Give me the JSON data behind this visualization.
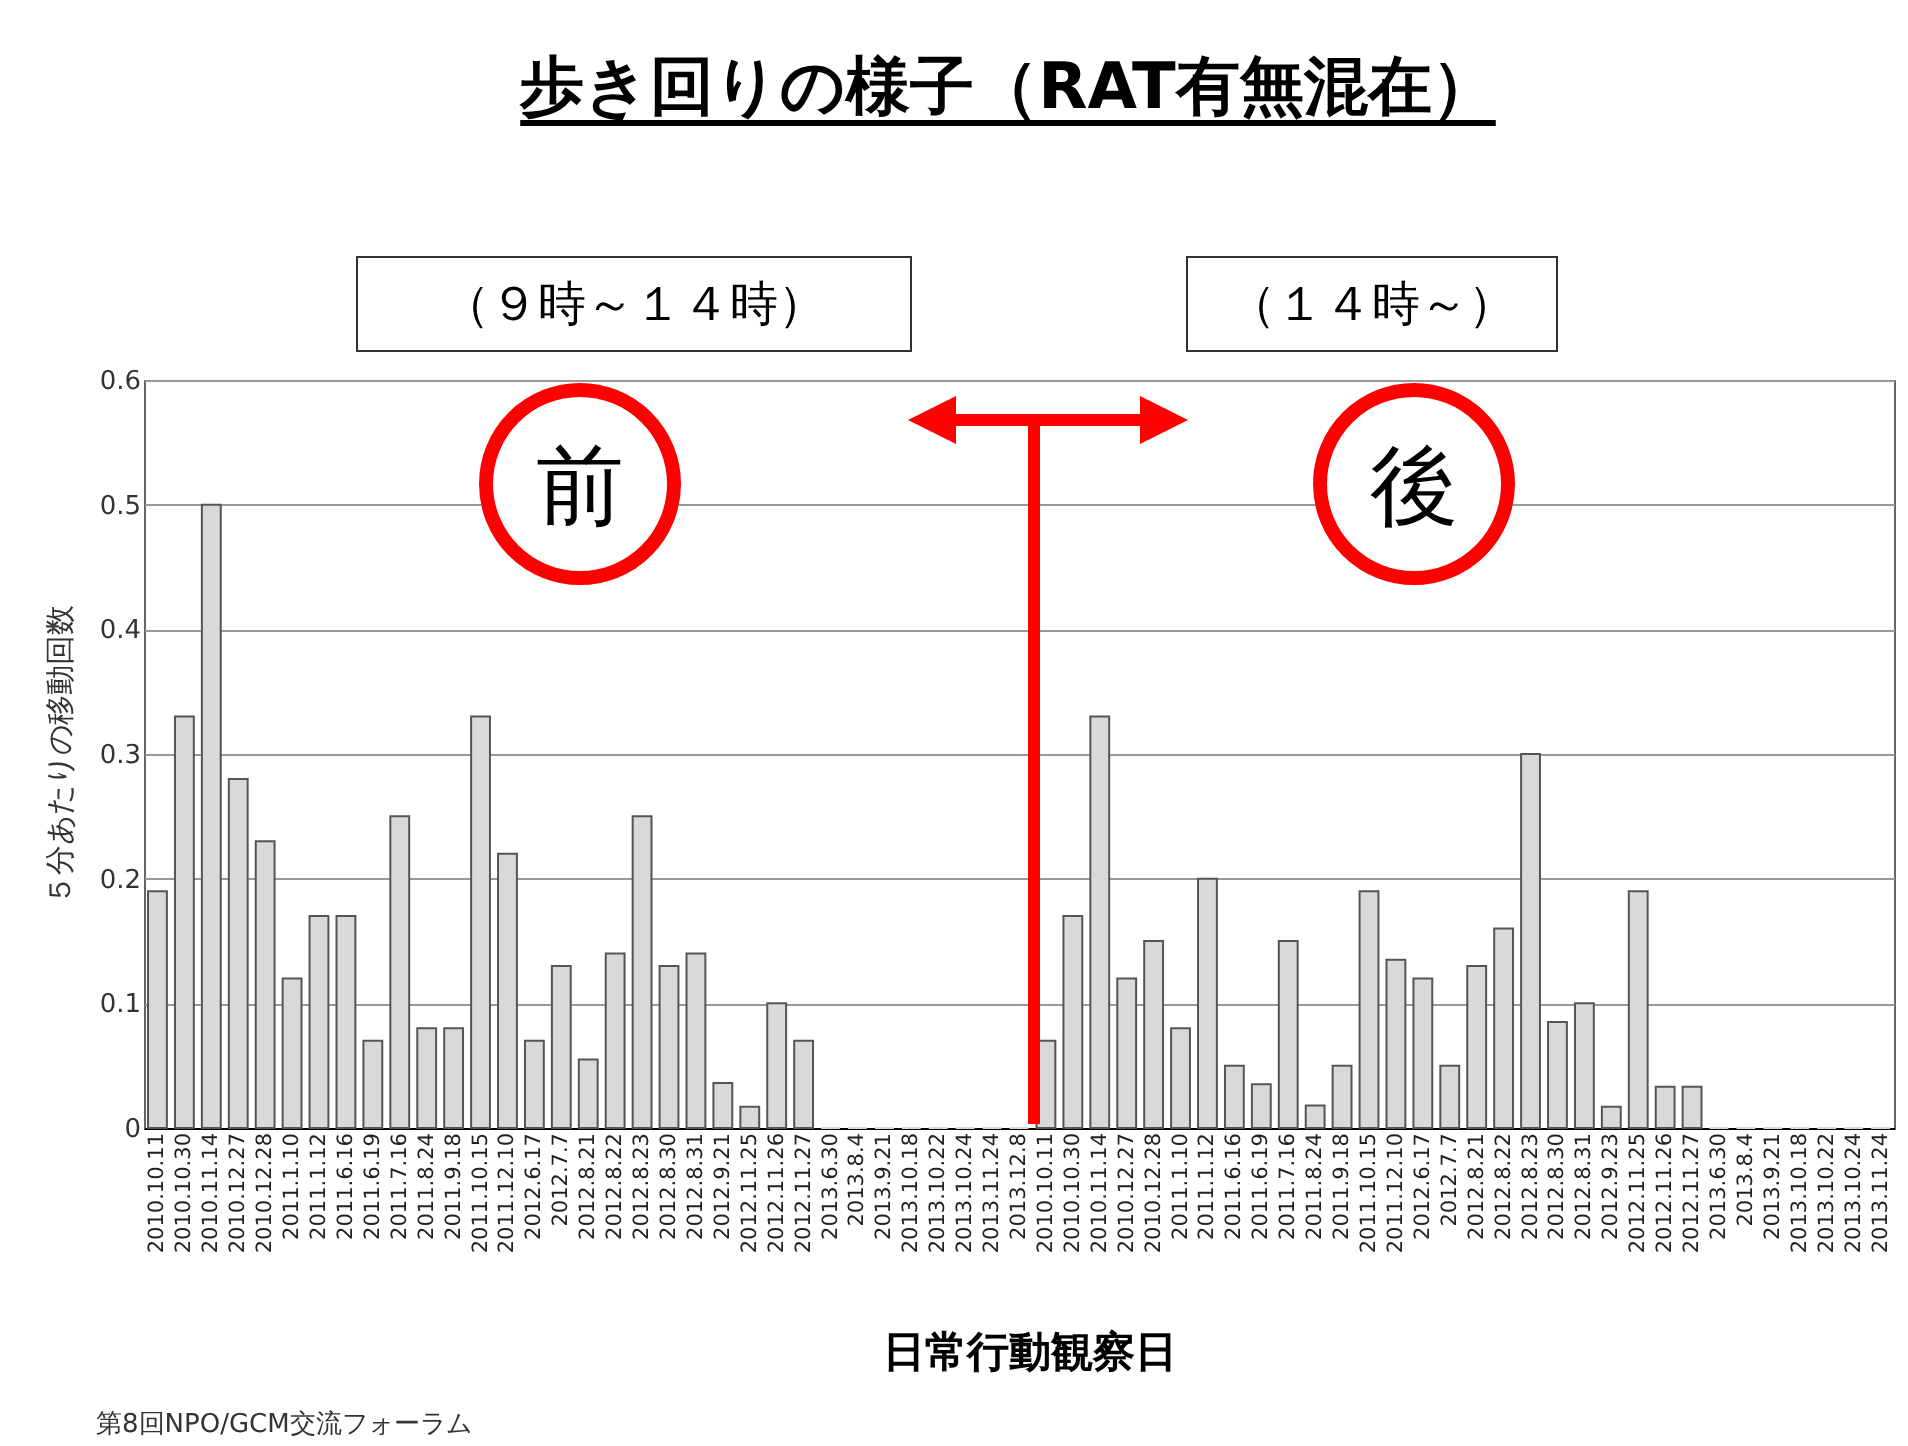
{
  "chart_data": {
    "type": "bar",
    "title": "歩き回りの様子（RAT有無混在）",
    "xlabel": "日常行動観察日",
    "ylabel": "５分あたりの移動回数",
    "annotations": [
      "（９時～１４時）",
      "（１４時～）",
      "前",
      "後",
      "第8回NPO/GCM交流フォーラム"
    ],
    "categories": [
      "2010.10.11",
      "2010.10.30",
      "2010.11.14",
      "2010.12.27",
      "2010.12.28",
      "2011.1.10",
      "2011.1.12",
      "2011.6.16",
      "2011.6.19",
      "2011.7.16",
      "2011.8.24",
      "2011.9.18",
      "2011.10.15",
      "2011.12.10",
      "2012.6.17",
      "2012.7.7",
      "2012.8.21",
      "2012.8.22",
      "2012.8.23",
      "2012.8.30",
      "2012.8.31",
      "2012.9.21",
      "2012.11.25",
      "2012.11.26",
      "2012.11.27",
      "2013.6.30",
      "2013.8.4",
      "2013.9.21",
      "2013.10.18",
      "2013.10.22",
      "2013.10.24",
      "2013.11.24",
      "2013.12.8",
      "2010.10.11",
      "2010.10.30",
      "2010.11.14",
      "2010.12.27",
      "2010.12.28",
      "2011.1.10",
      "2011.1.12",
      "2011.6.16",
      "2011.6.19",
      "2011.7.16",
      "2011.8.24",
      "2011.9.18",
      "2011.10.15",
      "2011.12.10",
      "2012.6.17",
      "2012.7.7",
      "2012.8.21",
      "2012.8.22",
      "2012.8.23",
      "2012.8.30",
      "2012.8.31",
      "2012.9.23",
      "2012.11.25",
      "2012.11.26",
      "2012.11.27",
      "2013.6.30",
      "2013.8.4",
      "2013.9.21",
      "2013.10.18",
      "2013.10.22",
      "2013.10.24",
      "2013.11.24"
    ],
    "values": [
      0.19,
      0.33,
      0.5,
      0.28,
      0.23,
      0.12,
      0.17,
      0.17,
      0.07,
      0.25,
      0.08,
      0.08,
      0.33,
      0.22,
      0.07,
      0.13,
      0.055,
      0.14,
      0.25,
      0.13,
      0.14,
      0.036,
      0.017,
      0.1,
      0.07,
      0,
      0,
      0,
      0,
      0,
      0,
      0,
      0,
      0.07,
      0.17,
      0.33,
      0.12,
      0.15,
      0.08,
      0.2,
      0.05,
      0.035,
      0.15,
      0.018,
      0.05,
      0.19,
      0.135,
      0.12,
      0.05,
      0.13,
      0.16,
      0.3,
      0.085,
      0.1,
      0.017,
      0.19,
      0.033,
      0.033,
      0,
      0,
      0,
      0,
      0,
      0,
      0
    ],
    "color": "#d9d9d9",
    "ylim": [
      0,
      0.6
    ],
    "yticks": [
      0,
      0.1,
      0.2,
      0.3,
      0.4,
      0.5,
      0.6
    ],
    "grid": "y"
  }
}
